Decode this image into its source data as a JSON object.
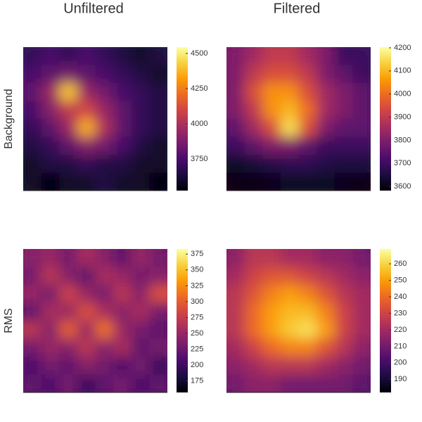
{
  "columns": [
    "Unfiltered",
    "Filtered"
  ],
  "rows": [
    "Background",
    "RMS"
  ],
  "chart_data": [
    {
      "type": "heatmap",
      "colormap": "inferno",
      "zlim": [
        3525,
        4545
      ],
      "zticks": [
        3750,
        4000,
        4250,
        4500
      ],
      "z": [
        [
          3700,
          3750,
          3700,
          3750,
          3700,
          3650,
          3600,
          3650
        ],
        [
          3750,
          3800,
          3850,
          3800,
          3750,
          3700,
          3650,
          3600
        ],
        [
          3800,
          3950,
          4400,
          3950,
          3850,
          3750,
          3700,
          3650
        ],
        [
          3750,
          3900,
          4050,
          4100,
          3950,
          3800,
          3700,
          3650
        ],
        [
          3700,
          3800,
          3950,
          4350,
          4000,
          3800,
          3700,
          3650
        ],
        [
          3650,
          3700,
          3800,
          3900,
          3850,
          3750,
          3650,
          3600
        ],
        [
          3600,
          3650,
          3650,
          3700,
          3650,
          3650,
          3600,
          3600
        ],
        [
          3600,
          3550,
          3600,
          3600,
          3650,
          3600,
          3600,
          3550
        ]
      ]
    },
    {
      "type": "heatmap",
      "colormap": "inferno",
      "zlim": [
        3582,
        4203
      ],
      "zticks": [
        3600,
        3700,
        3800,
        3900,
        4000,
        4100,
        4200
      ],
      "z": [
        [
          3800,
          3850,
          3900,
          3900,
          3850,
          3800,
          3700,
          3700
        ],
        [
          3800,
          3900,
          3950,
          3950,
          3900,
          3800,
          3750,
          3700
        ],
        [
          3800,
          3950,
          4050,
          4050,
          3950,
          3850,
          3800,
          3750
        ],
        [
          3800,
          3900,
          4050,
          4100,
          4000,
          3850,
          3800,
          3750
        ],
        [
          3750,
          3850,
          3950,
          4150,
          3950,
          3800,
          3750,
          3750
        ],
        [
          3700,
          3750,
          3800,
          3800,
          3750,
          3700,
          3700,
          3700
        ],
        [
          3620,
          3640,
          3660,
          3680,
          3680,
          3660,
          3650,
          3650
        ],
        [
          3600,
          3600,
          3610,
          3620,
          3620,
          3620,
          3610,
          3600
        ]
      ]
    },
    {
      "type": "heatmap",
      "colormap": "inferno",
      "zlim": [
        157,
        383
      ],
      "zticks": [
        175,
        200,
        225,
        250,
        275,
        300,
        325,
        350,
        375
      ],
      "z": [
        [
          240,
          250,
          230,
          260,
          240,
          220,
          250,
          230
        ],
        [
          230,
          270,
          240,
          220,
          260,
          250,
          230,
          240
        ],
        [
          250,
          230,
          280,
          250,
          230,
          270,
          240,
          290
        ],
        [
          220,
          260,
          250,
          290,
          260,
          240,
          260,
          230
        ],
        [
          270,
          240,
          300,
          250,
          310,
          250,
          230,
          220
        ],
        [
          230,
          250,
          240,
          270,
          240,
          260,
          220,
          230
        ],
        [
          210,
          230,
          220,
          240,
          230,
          210,
          230,
          200
        ],
        [
          220,
          210,
          230,
          200,
          220,
          230,
          210,
          220
        ]
      ]
    },
    {
      "type": "heatmap",
      "colormap": "inferno",
      "zlim": [
        182,
        269
      ],
      "zticks": [
        190,
        200,
        210,
        220,
        230,
        240,
        250,
        260
      ],
      "z": [
        [
          215,
          225,
          225,
          220,
          220,
          215,
          215,
          210
        ],
        [
          220,
          230,
          235,
          235,
          230,
          225,
          220,
          215
        ],
        [
          225,
          235,
          245,
          250,
          245,
          235,
          225,
          220
        ],
        [
          225,
          240,
          250,
          255,
          255,
          245,
          230,
          220
        ],
        [
          225,
          240,
          250,
          258,
          262,
          250,
          230,
          220
        ],
        [
          220,
          230,
          240,
          245,
          245,
          235,
          225,
          215
        ],
        [
          215,
          220,
          225,
          225,
          225,
          220,
          215,
          210
        ],
        [
          210,
          215,
          215,
          210,
          210,
          210,
          210,
          205
        ]
      ]
    }
  ]
}
